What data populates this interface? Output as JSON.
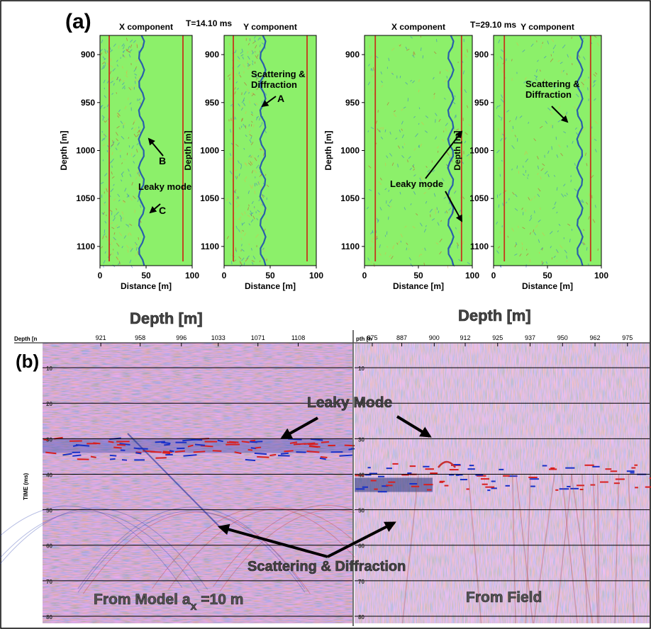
{
  "figure": {
    "panel_a": {
      "label": "(a)",
      "groups": [
        {
          "time_label": "T=14.10 ms"
        },
        {
          "time_label": "T=29.10 ms"
        }
      ],
      "x_label": "Distance [m]",
      "y_label": "Depth [m]",
      "x_ticks": [
        "0",
        "50",
        "100"
      ],
      "y_ticks": [
        "900",
        "950",
        "1000",
        "1050",
        "1100"
      ],
      "plots": [
        {
          "title": "X component",
          "annotations": [
            "B",
            "Leaky mode",
            "C"
          ]
        },
        {
          "title": "Y component",
          "annotations": [
            "Scattering &",
            "Diffraction",
            "A"
          ]
        },
        {
          "title": "X component",
          "annotations": [
            "Leaky mode"
          ]
        },
        {
          "title": "Y component",
          "annotations": [
            "Scattering &",
            "Diffraction"
          ]
        }
      ]
    },
    "panel_b": {
      "label": "(b)",
      "left": {
        "header": "Depth [m]",
        "axis_corner": "Depth [n",
        "x_ticks": [
          "921",
          "958",
          "996",
          "1033",
          "1071",
          "1108"
        ],
        "y_label": "TIME (ms)",
        "y_ticks": [
          "10",
          "20",
          "30",
          "40",
          "50",
          "60",
          "70",
          "80"
        ],
        "caption_main": "From Model a",
        "caption_sub": "x",
        "caption_rest": " =10 m"
      },
      "right": {
        "header": "Depth [m]",
        "axis_corner": "pth [n",
        "x_ticks": [
          "875",
          "887",
          "900",
          "912",
          "925",
          "937",
          "950",
          "962",
          "975"
        ],
        "y_ticks": [
          "10",
          "20",
          "30",
          "40",
          "50",
          "60",
          "70",
          "80"
        ],
        "caption": "From Field"
      },
      "annotation_leaky": "Leaky Mode",
      "annotation_scatter": "Scattering & Diffraction"
    }
  },
  "chart_data": [
    {
      "type": "heatmap",
      "title": "X component",
      "time_label": "T=14.10 ms",
      "xlabel": "Distance [m]",
      "ylabel": "Depth [m]",
      "xlim": [
        0,
        100
      ],
      "ylim": [
        1120,
        880
      ],
      "x_ticks": [
        0,
        50,
        100
      ],
      "y_ticks": [
        900,
        950,
        1000,
        1050,
        1100
      ],
      "vertical_lines_x": [
        10,
        90
      ],
      "wavefront_x": 45,
      "annotations": [
        "B",
        "Leaky mode",
        "C"
      ]
    },
    {
      "type": "heatmap",
      "title": "Y component",
      "time_label": "T=14.10 ms",
      "xlabel": "Distance [m]",
      "ylabel": "Depth [m]",
      "xlim": [
        0,
        100
      ],
      "ylim": [
        1120,
        880
      ],
      "x_ticks": [
        0,
        50,
        100
      ],
      "y_ticks": [
        900,
        950,
        1000,
        1050,
        1100
      ],
      "vertical_lines_x": [
        10,
        90
      ],
      "wavefront_x": 42,
      "annotations": [
        "Scattering & Diffraction",
        "A"
      ]
    },
    {
      "type": "heatmap",
      "title": "X component",
      "time_label": "T=29.10 ms",
      "xlabel": "Distance [m]",
      "ylabel": "Depth [m]",
      "xlim": [
        0,
        100
      ],
      "ylim": [
        1120,
        880
      ],
      "x_ticks": [
        0,
        50,
        100
      ],
      "y_ticks": [
        900,
        950,
        1000,
        1050,
        1100
      ],
      "vertical_lines_x": [
        10,
        90
      ],
      "wavefront_x": 80,
      "annotations": [
        "Leaky mode"
      ]
    },
    {
      "type": "heatmap",
      "title": "Y component",
      "time_label": "T=29.10 ms",
      "xlabel": "Distance [m]",
      "ylabel": "Depth [m]",
      "xlim": [
        0,
        100
      ],
      "ylim": [
        1120,
        880
      ],
      "x_ticks": [
        0,
        50,
        100
      ],
      "y_ticks": [
        900,
        950,
        1000,
        1050,
        1100
      ],
      "vertical_lines_x": [
        10,
        90
      ],
      "wavefront_x": 80,
      "annotations": [
        "Scattering & Diffraction"
      ]
    },
    {
      "type": "heatmap",
      "title": "From Model a x =10 m",
      "xlabel": "Depth [m]",
      "ylabel": "TIME (ms)",
      "x_ticks": [
        921,
        958,
        996,
        1033,
        1071,
        1108
      ],
      "y_ticks": [
        10,
        20,
        30,
        40,
        50,
        60,
        70,
        80
      ],
      "first_arrival_ms": 30,
      "annotations": [
        "Leaky Mode",
        "Scattering & Diffraction"
      ]
    },
    {
      "type": "heatmap",
      "title": "From Field",
      "xlabel": "Depth [m]",
      "ylabel": "TIME (ms)",
      "x_ticks": [
        875,
        887,
        900,
        912,
        925,
        937,
        950,
        962,
        975
      ],
      "y_ticks": [
        10,
        20,
        30,
        40,
        50,
        60,
        70,
        80
      ],
      "first_arrival_ms": 40,
      "annotations": [
        "Leaky Mode",
        "Scattering & Diffraction"
      ]
    }
  ]
}
